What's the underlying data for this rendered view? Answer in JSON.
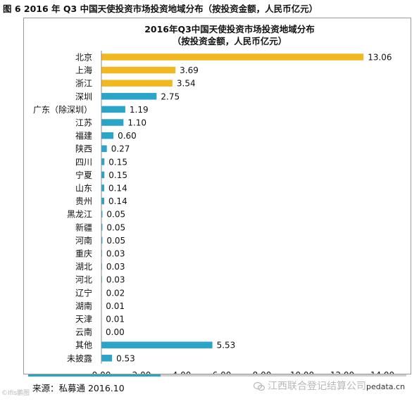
{
  "figure": {
    "caption": "图 6 2016 年 Q3 中国天使投资市场投资地域分布（按投资金额，人民币亿元）",
    "source": "来源：私募通 2016.10",
    "watermark_left": "©Ifis鹏图",
    "watermark_right": "江西联合登记结算公司",
    "watermark_url": "pedata.cn",
    "strip_progress": 0.35,
    "colors": {
      "bar_highlight": "#f2b820",
      "bar_default": "#2aa4c8",
      "axis": "#8a8a8a",
      "strip_fill": "#2aa4c8"
    }
  },
  "chart_data": {
    "type": "bar",
    "orientation": "horizontal",
    "title": "2016年Q3中国天使投资市场投资地域分布",
    "subtitle": "（按投资金额，人民币亿元）",
    "categories": [
      "北京",
      "上海",
      "浙江",
      "深圳",
      "广东（除深圳）",
      "江苏",
      "福建",
      "陕西",
      "四川",
      "宁夏",
      "山东",
      "贵州",
      "黑龙江",
      "新疆",
      "河南",
      "重庆",
      "湖北",
      "河北",
      "辽宁",
      "湖南",
      "天津",
      "云南",
      "其他",
      "未披露"
    ],
    "values": [
      13.06,
      3.69,
      3.54,
      2.75,
      1.19,
      1.1,
      0.6,
      0.27,
      0.15,
      0.15,
      0.14,
      0.14,
      0.05,
      0.05,
      0.05,
      0.03,
      0.03,
      0.03,
      0.02,
      0.01,
      0.01,
      0.0,
      5.53,
      0.53
    ],
    "value_labels": [
      "13.06",
      "3.69",
      "3.54",
      "2.75",
      "1.19",
      "1.10",
      "0.60",
      "0.27",
      "0.15",
      "0.15",
      "0.14",
      "0.14",
      "0.05",
      "0.05",
      "0.05",
      "0.03",
      "0.03",
      "0.03",
      "0.02",
      "0.01",
      "0.01",
      "0.00",
      "5.53",
      "0.53"
    ],
    "highlight_categories": [
      "北京",
      "上海",
      "浙江"
    ],
    "xlim": [
      0,
      14
    ],
    "xticks": [
      "0.00",
      "2.00",
      "4.00",
      "6.00",
      "8.00",
      "10.00",
      "12.00",
      "14.00"
    ],
    "xlabel": "",
    "ylabel": "",
    "grid": false,
    "legend": "none"
  }
}
